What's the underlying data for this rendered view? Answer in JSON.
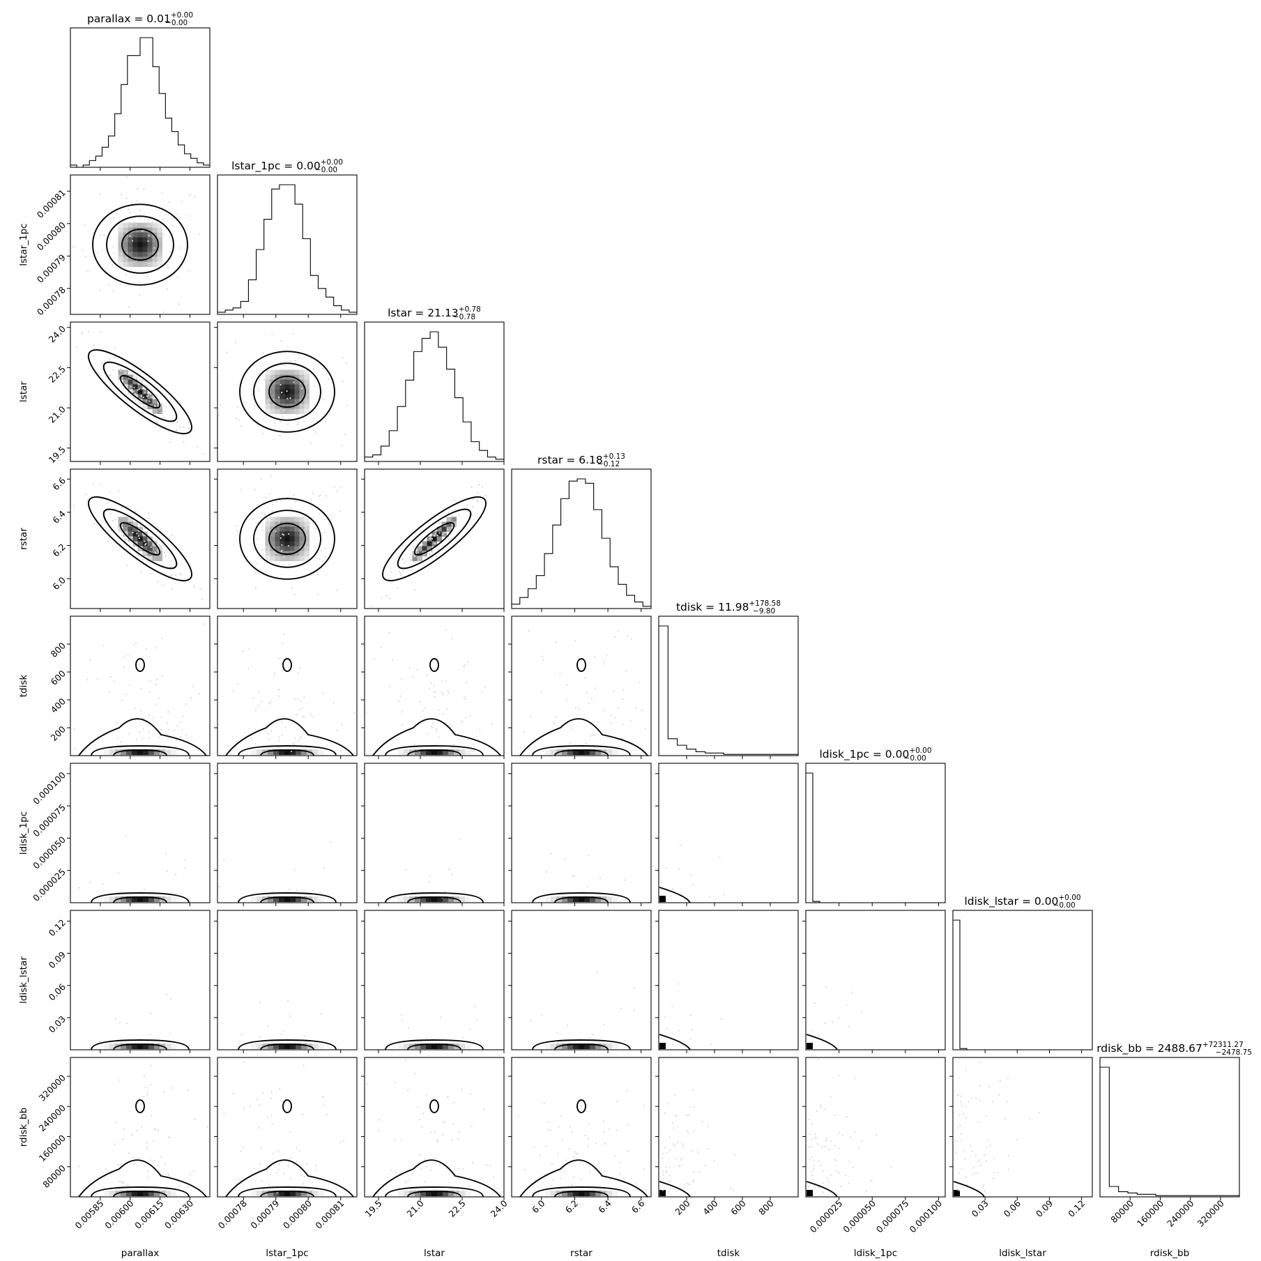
{
  "chart_data": {
    "type": "corner",
    "parameters": [
      {
        "name": "parallax",
        "xlabel": "parallax",
        "ylabel": "",
        "title_main": "parallax = 0.01",
        "title_sup": "+0.00",
        "title_sub": "−0.00",
        "range": [
          0.0057,
          0.0064
        ],
        "ticks": [
          0.00585,
          0.006,
          0.00615,
          0.0063
        ],
        "tick_labels": [
          "0.00585",
          "0.00600",
          "0.00615",
          "0.00630"
        ],
        "hist": [
          1,
          0,
          1,
          3,
          5,
          9,
          14,
          24,
          37,
          50,
          50,
          58,
          58,
          45,
          33,
          22,
          16,
          10,
          6,
          4,
          2,
          1
        ]
      },
      {
        "name": "lstar_1pc",
        "xlabel": "lstar_1pc",
        "ylabel": "lstar_1pc",
        "title_main": "lstar_1pc = 0.00",
        "title_sup": "+0.00",
        "title_sub": "−0.00",
        "range": [
          0.000772,
          0.000815
        ],
        "ticks": [
          0.00078,
          0.00079,
          0.0008,
          0.00081
        ],
        "tick_labels": [
          "0.00078",
          "0.00079",
          "0.00080",
          "0.00081"
        ],
        "hist": [
          1,
          2,
          3,
          6,
          16,
          30,
          44,
          58,
          60,
          60,
          51,
          35,
          18,
          12,
          8,
          4,
          2,
          1
        ]
      },
      {
        "name": "lstar",
        "xlabel": "lstar",
        "ylabel": "lstar",
        "title_main": "lstar = 21.13",
        "title_sup": "+0.78",
        "title_sub": "−0.78",
        "range": [
          19.0,
          24.0
        ],
        "ticks": [
          19.5,
          21.0,
          22.5,
          24.0
        ],
        "tick_labels": [
          "19.5",
          "21.0",
          "22.5",
          "24.0"
        ],
        "hist": [
          2,
          3,
          7,
          14,
          25,
          37,
          50,
          56,
          59,
          52,
          42,
          29,
          18,
          9,
          5,
          2,
          1
        ]
      },
      {
        "name": "rstar",
        "xlabel": "rstar",
        "ylabel": "rstar",
        "title_main": "rstar = 6.18",
        "title_sup": "+0.13",
        "title_sub": "−0.12",
        "range": [
          5.82,
          6.66
        ],
        "ticks": [
          6.0,
          6.2,
          6.4,
          6.6
        ],
        "tick_labels": [
          "6.0",
          "6.2",
          "6.4",
          "6.6"
        ],
        "hist": [
          2,
          5,
          9,
          15,
          25,
          38,
          50,
          58,
          59,
          57,
          45,
          32,
          19,
          11,
          6,
          3,
          1
        ]
      },
      {
        "name": "tdisk",
        "xlabel": "tdisk",
        "ylabel": "tdisk",
        "title_main": "tdisk = 11.98",
        "title_sup": "+178.58",
        "title_sub": "−9.80",
        "range": [
          0,
          1000
        ],
        "ticks": [
          200,
          400,
          600,
          800
        ],
        "tick_labels": [
          "200",
          "400",
          "600",
          "800"
        ],
        "hist": [
          100,
          13,
          8,
          5,
          3,
          2,
          2,
          1,
          1,
          1,
          1,
          1,
          1,
          1,
          1
        ]
      },
      {
        "name": "ldisk_1pc",
        "xlabel": "ldisk_1pc",
        "ylabel": "ldisk_1pc",
        "title_main": "ldisk_1pc = 0.00",
        "title_sup": "+0.00",
        "title_sub": "−0.00",
        "range": [
          0,
          0.000105
        ],
        "ticks": [
          2.5e-05,
          5e-05,
          7.5e-05,
          0.0001
        ],
        "tick_labels": [
          "0.000025",
          "0.000050",
          "0.000075",
          "0.000100"
        ],
        "hist": [
          100,
          1,
          0,
          0,
          0,
          0,
          0,
          0,
          0,
          0,
          0,
          0,
          0,
          0,
          0,
          0,
          0,
          0,
          0,
          0
        ]
      },
      {
        "name": "ldisk_lstar",
        "xlabel": "ldisk_lstar",
        "ylabel": "ldisk_lstar",
        "title_main": "ldisk_lstar = 0.00",
        "title_sup": "+0.00",
        "title_sub": "−0.00",
        "range": [
          0,
          0.13
        ],
        "ticks": [
          0.03,
          0.06,
          0.09,
          0.12
        ],
        "tick_labels": [
          "0.03",
          "0.06",
          "0.09",
          "0.12"
        ],
        "hist": [
          100,
          1,
          0,
          0,
          0,
          0,
          0,
          0,
          0,
          0,
          0,
          0,
          0,
          0,
          0,
          0,
          0,
          0,
          0,
          0
        ]
      },
      {
        "name": "rdisk_bb",
        "xlabel": "rdisk_bb",
        "ylabel": "rdisk_bb",
        "title_main": "rdisk_bb = 2488.67",
        "title_sup": "+72311.27",
        "title_sub": "−2478.75",
        "range": [
          0,
          370000
        ],
        "ticks": [
          80000,
          160000,
          240000,
          320000
        ],
        "tick_labels": [
          "80000",
          "160000",
          "240000",
          "320000"
        ],
        "hist": [
          100,
          8,
          4,
          3,
          2,
          2,
          1,
          1,
          1,
          1,
          1,
          1,
          1,
          1,
          1
        ]
      }
    ],
    "axis_ranges_y": {
      "lstar_1pc": [
        0.000772,
        0.000815
      ],
      "lstar": [
        19.0,
        24.2
      ],
      "rstar": [
        5.82,
        6.66
      ],
      "tdisk": [
        0,
        1000
      ],
      "ldisk_1pc": [
        0,
        0.000108
      ],
      "ldisk_lstar": [
        0,
        0.13
      ],
      "rdisk_bb": [
        0,
        370000
      ]
    },
    "correlations": {
      "0-2": -0.95,
      "0-3": -0.9,
      "2-3": 0.97
    }
  }
}
